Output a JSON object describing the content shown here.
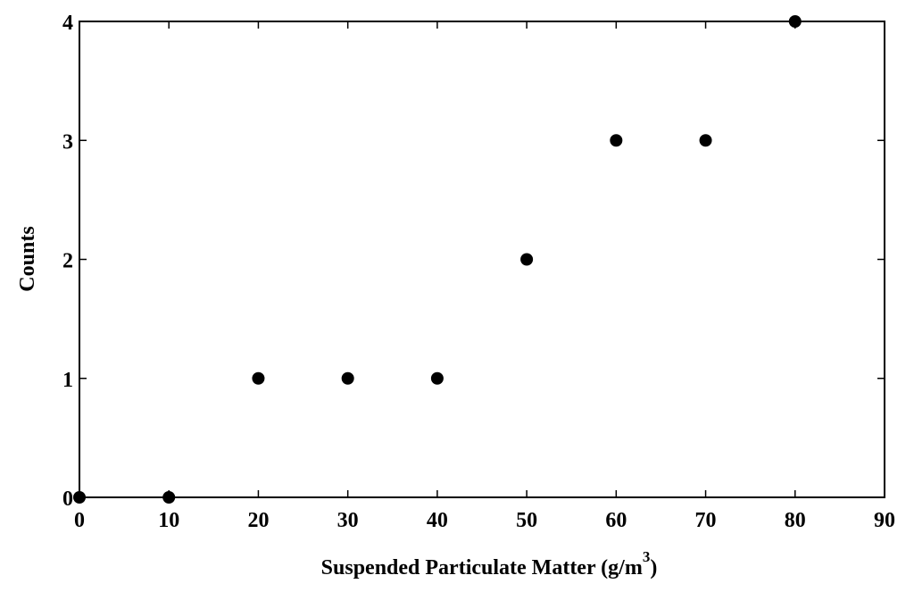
{
  "chart_data": {
    "type": "scatter",
    "x": [
      0,
      10,
      20,
      30,
      40,
      50,
      60,
      70,
      80
    ],
    "y": [
      0,
      0,
      1,
      1,
      1,
      2,
      3,
      3,
      4
    ],
    "xlabel": "Suspended Particulate Matter (g/m",
    "xlabel_superscript": "3",
    "xlabel_suffix": ")",
    "ylabel": "Counts",
    "xlim": [
      0,
      90
    ],
    "ylim": [
      0,
      4
    ],
    "xticks": [
      0,
      10,
      20,
      30,
      40,
      50,
      60,
      70,
      80,
      90
    ],
    "yticks": [
      0,
      1,
      2,
      3,
      4
    ],
    "grid": false,
    "marker_color": "#000000"
  }
}
